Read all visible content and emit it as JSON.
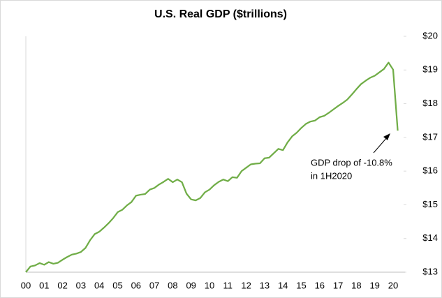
{
  "chart_data": {
    "type": "line",
    "title": "U.S. Real GDP ($trillions)",
    "categories": [
      "00",
      null,
      null,
      null,
      "01",
      null,
      null,
      null,
      "02",
      null,
      null,
      null,
      "03",
      null,
      null,
      null,
      "04",
      null,
      null,
      null,
      "05",
      null,
      null,
      null,
      "06",
      null,
      null,
      null,
      "07",
      null,
      null,
      null,
      "08",
      null,
      null,
      null,
      "09",
      null,
      null,
      null,
      "10",
      null,
      null,
      null,
      "11",
      null,
      null,
      null,
      "12",
      null,
      null,
      null,
      "13",
      null,
      null,
      null,
      "14",
      null,
      null,
      null,
      "15",
      null,
      null,
      null,
      "16",
      null,
      null,
      null,
      "17",
      null,
      null,
      null,
      "18",
      null,
      null,
      null,
      "19",
      null,
      null,
      null,
      "20",
      null
    ],
    "series": [
      {
        "name": "U.S. Real GDP",
        "color": "#70ad47",
        "values": [
          13.0,
          13.17,
          13.2,
          13.27,
          13.22,
          13.3,
          13.25,
          13.28,
          13.37,
          13.45,
          13.52,
          13.55,
          13.6,
          13.72,
          13.95,
          14.13,
          14.2,
          14.32,
          14.45,
          14.6,
          14.78,
          14.85,
          14.98,
          15.08,
          15.27,
          15.3,
          15.32,
          15.45,
          15.5,
          15.6,
          15.68,
          15.77,
          15.67,
          15.75,
          15.67,
          15.33,
          15.16,
          15.13,
          15.2,
          15.37,
          15.45,
          15.58,
          15.68,
          15.75,
          15.7,
          15.82,
          15.8,
          16.0,
          16.1,
          16.2,
          16.22,
          16.23,
          16.38,
          16.4,
          16.53,
          16.66,
          16.62,
          16.85,
          17.03,
          17.14,
          17.28,
          17.4,
          17.47,
          17.5,
          17.6,
          17.64,
          17.73,
          17.83,
          17.93,
          18.02,
          18.12,
          18.27,
          18.43,
          18.58,
          18.68,
          18.77,
          18.83,
          18.93,
          19.03,
          19.22,
          19.01,
          17.2
        ]
      }
    ],
    "ylim": [
      13,
      20
    ],
    "yticks": [
      {
        "value": 13,
        "label": "$13"
      },
      {
        "value": 14,
        "label": "$14"
      },
      {
        "value": 15,
        "label": "$15"
      },
      {
        "value": 16,
        "label": "$16"
      },
      {
        "value": 17,
        "label": "$17"
      },
      {
        "value": 18,
        "label": "$18"
      },
      {
        "value": 19,
        "label": "$19"
      },
      {
        "value": 20,
        "label": "$20"
      }
    ],
    "annotations": [
      "GDP drop of -10.8%",
      "in 1H2020"
    ]
  }
}
